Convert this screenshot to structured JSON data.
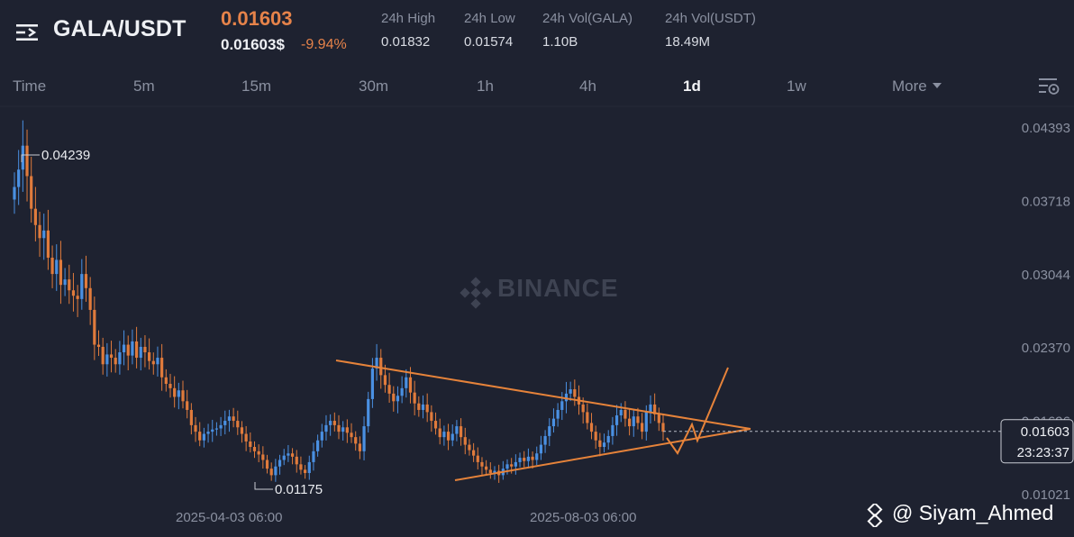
{
  "header": {
    "pair": "GALA/USDT",
    "last_price": "0.01603",
    "sub_price": "0.01603$",
    "change": "-9.94%",
    "stats": [
      {
        "label": "24h High",
        "value": "0.01832"
      },
      {
        "label": "24h Low",
        "value": "0.01574"
      },
      {
        "label": "24h Vol(GALA)",
        "value": "1.10B"
      },
      {
        "label": "24h Vol(USDT)",
        "value": "18.49M"
      }
    ]
  },
  "timeframes": [
    "Time",
    "5m",
    "15m",
    "30m",
    "1h",
    "4h",
    "1d",
    "1w",
    "More"
  ],
  "active_timeframe": "1d",
  "chart_data": {
    "type": "candlestick",
    "y_ticks": [
      "0.04393",
      "0.03718",
      "0.03044",
      "0.02370",
      "0.01696",
      "0.01021"
    ],
    "ylim": [
      0.01021,
      0.04393
    ],
    "x_ticks": [
      "2025-04-03 06:00",
      "2025-08-03 06:00"
    ],
    "high_marker": "0.04239",
    "low_marker": "0.01175",
    "current_price": "0.01603",
    "countdown": "23:23:37",
    "close_series": [
      0.0385,
      0.0401,
      0.0423,
      0.0395,
      0.0365,
      0.035,
      0.0338,
      0.0345,
      0.032,
      0.0305,
      0.0318,
      0.0295,
      0.03,
      0.029,
      0.0285,
      0.0282,
      0.0305,
      0.0292,
      0.0272,
      0.024,
      0.0238,
      0.0222,
      0.0231,
      0.0228,
      0.0222,
      0.0233,
      0.024,
      0.023,
      0.0243,
      0.0228,
      0.0238,
      0.0233,
      0.0225,
      0.0222,
      0.0228,
      0.021,
      0.0204,
      0.02,
      0.0192,
      0.0198,
      0.0188,
      0.018,
      0.0166,
      0.016,
      0.0152,
      0.0158,
      0.016,
      0.0162,
      0.0163,
      0.0166,
      0.017,
      0.0174,
      0.017,
      0.0164,
      0.0158,
      0.0151,
      0.0146,
      0.0142,
      0.0139,
      0.0134,
      0.0126,
      0.012,
      0.0128,
      0.0134,
      0.0138,
      0.014,
      0.0137,
      0.013,
      0.0125,
      0.0122,
      0.0132,
      0.0142,
      0.0152,
      0.016,
      0.0166,
      0.017,
      0.0166,
      0.016,
      0.0164,
      0.0159,
      0.0155,
      0.0149,
      0.0142,
      0.0165,
      0.019,
      0.0218,
      0.0228,
      0.0212,
      0.0203,
      0.0195,
      0.0188,
      0.0193,
      0.02,
      0.021,
      0.0196,
      0.0186,
      0.018,
      0.0185,
      0.0178,
      0.017,
      0.0163,
      0.0155,
      0.016,
      0.0152,
      0.0158,
      0.0165,
      0.0155,
      0.0148,
      0.0143,
      0.0138,
      0.0132,
      0.0128,
      0.0125,
      0.0122,
      0.0124,
      0.012,
      0.0126,
      0.013,
      0.0128,
      0.0132,
      0.0136,
      0.0133,
      0.0137,
      0.0134,
      0.014,
      0.0148,
      0.0156,
      0.0165,
      0.0172,
      0.018,
      0.0188,
      0.0195,
      0.0199,
      0.0192,
      0.0185,
      0.0178,
      0.0168,
      0.016,
      0.0152,
      0.0146,
      0.015,
      0.0156,
      0.0166,
      0.0175,
      0.018,
      0.0172,
      0.0165,
      0.0174,
      0.0168,
      0.016,
      0.0178,
      0.0185,
      0.0176,
      0.0168,
      0.016
    ]
  },
  "watermark": "BINANCE",
  "credit": "@ Siyam_Ahmed",
  "colors": {
    "background": "#1e2230",
    "up": "#4a90e2",
    "down": "#e07b3c",
    "accent": "#e6834a",
    "pattern": "#e6833a"
  },
  "icons": {
    "menu": "menu-icon",
    "settings": "chart-settings-icon",
    "watermark": "binance-logo-icon",
    "credit": "binance-square-icon"
  }
}
